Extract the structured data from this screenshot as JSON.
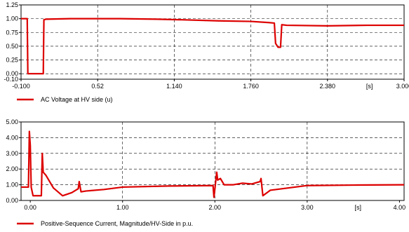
{
  "chart_data": [
    {
      "type": "line",
      "title": "",
      "xlabel": "[s]",
      "ylabel": "",
      "xlim": [
        -0.1,
        3.0
      ],
      "ylim": [
        -0.1,
        1.25
      ],
      "xticks": [
        "-0.100",
        "0.52",
        "1.140",
        "1.760",
        "2.380",
        "[s]",
        "3.000"
      ],
      "yticks": [
        "1.25",
        "1.00",
        "0.75",
        "0.50",
        "0.25",
        "0.00",
        "-0.10"
      ],
      "grid": true,
      "legend_position": "bottom-left",
      "series": [
        {
          "name": "AC Voltage at HV side (u)",
          "color": "#dd0000",
          "points": [
            [
              -0.1,
              1.0
            ],
            [
              -0.05,
              1.0
            ],
            [
              -0.045,
              0.0
            ],
            [
              0.08,
              0.0
            ],
            [
              0.085,
              0.98
            ],
            [
              0.1,
              0.99
            ],
            [
              0.3,
              1.0
            ],
            [
              0.52,
              1.0
            ],
            [
              0.7,
              1.0
            ],
            [
              1.0,
              0.99
            ],
            [
              1.2,
              0.98
            ],
            [
              1.5,
              0.96
            ],
            [
              1.76,
              0.95
            ],
            [
              1.9,
              0.93
            ],
            [
              1.95,
              0.92
            ],
            [
              1.96,
              0.55
            ],
            [
              1.98,
              0.48
            ],
            [
              2.0,
              0.48
            ],
            [
              2.01,
              0.89
            ],
            [
              2.05,
              0.88
            ],
            [
              2.38,
              0.87
            ],
            [
              2.7,
              0.88
            ],
            [
              3.0,
              0.88
            ]
          ]
        }
      ]
    },
    {
      "type": "line",
      "title": "",
      "xlabel": "[s]",
      "ylabel": "",
      "xlim": [
        -0.1,
        4.05
      ],
      "ylim": [
        0.0,
        5.0
      ],
      "xticks": [
        "0.00",
        "1.00",
        "2.00",
        "3.00",
        "[s]",
        "4.00"
      ],
      "yticks": [
        "5.00",
        "4.00",
        "3.00",
        "2.00",
        "1.00",
        "0.00"
      ],
      "grid": true,
      "legend_position": "bottom-left",
      "series": [
        {
          "name": "Positive-Sequence Current, Magnitude/HV-Side in p.u.",
          "color": "#dd0000",
          "points": [
            [
              -0.1,
              0.85
            ],
            [
              -0.02,
              0.85
            ],
            [
              -0.01,
              4.4
            ],
            [
              0.0,
              3.5
            ],
            [
              0.01,
              0.85
            ],
            [
              0.03,
              0.3
            ],
            [
              0.12,
              0.3
            ],
            [
              0.13,
              3.0
            ],
            [
              0.14,
              1.8
            ],
            [
              0.17,
              1.6
            ],
            [
              0.25,
              0.8
            ],
            [
              0.35,
              0.3
            ],
            [
              0.45,
              0.5
            ],
            [
              0.52,
              0.75
            ],
            [
              0.53,
              1.2
            ],
            [
              0.55,
              0.55
            ],
            [
              0.6,
              0.6
            ],
            [
              0.8,
              0.7
            ],
            [
              1.0,
              0.85
            ],
            [
              1.5,
              0.92
            ],
            [
              1.98,
              0.95
            ],
            [
              1.99,
              0.2
            ],
            [
              2.02,
              1.8
            ],
            [
              2.03,
              1.3
            ],
            [
              2.06,
              1.4
            ],
            [
              2.1,
              1.0
            ],
            [
              2.2,
              1.0
            ],
            [
              2.3,
              1.1
            ],
            [
              2.4,
              1.05
            ],
            [
              2.49,
              1.2
            ],
            [
              2.5,
              1.4
            ],
            [
              2.52,
              0.3
            ],
            [
              2.6,
              0.65
            ],
            [
              2.8,
              0.8
            ],
            [
              3.0,
              0.95
            ],
            [
              3.5,
              0.98
            ],
            [
              4.05,
              1.0
            ]
          ]
        }
      ]
    }
  ]
}
